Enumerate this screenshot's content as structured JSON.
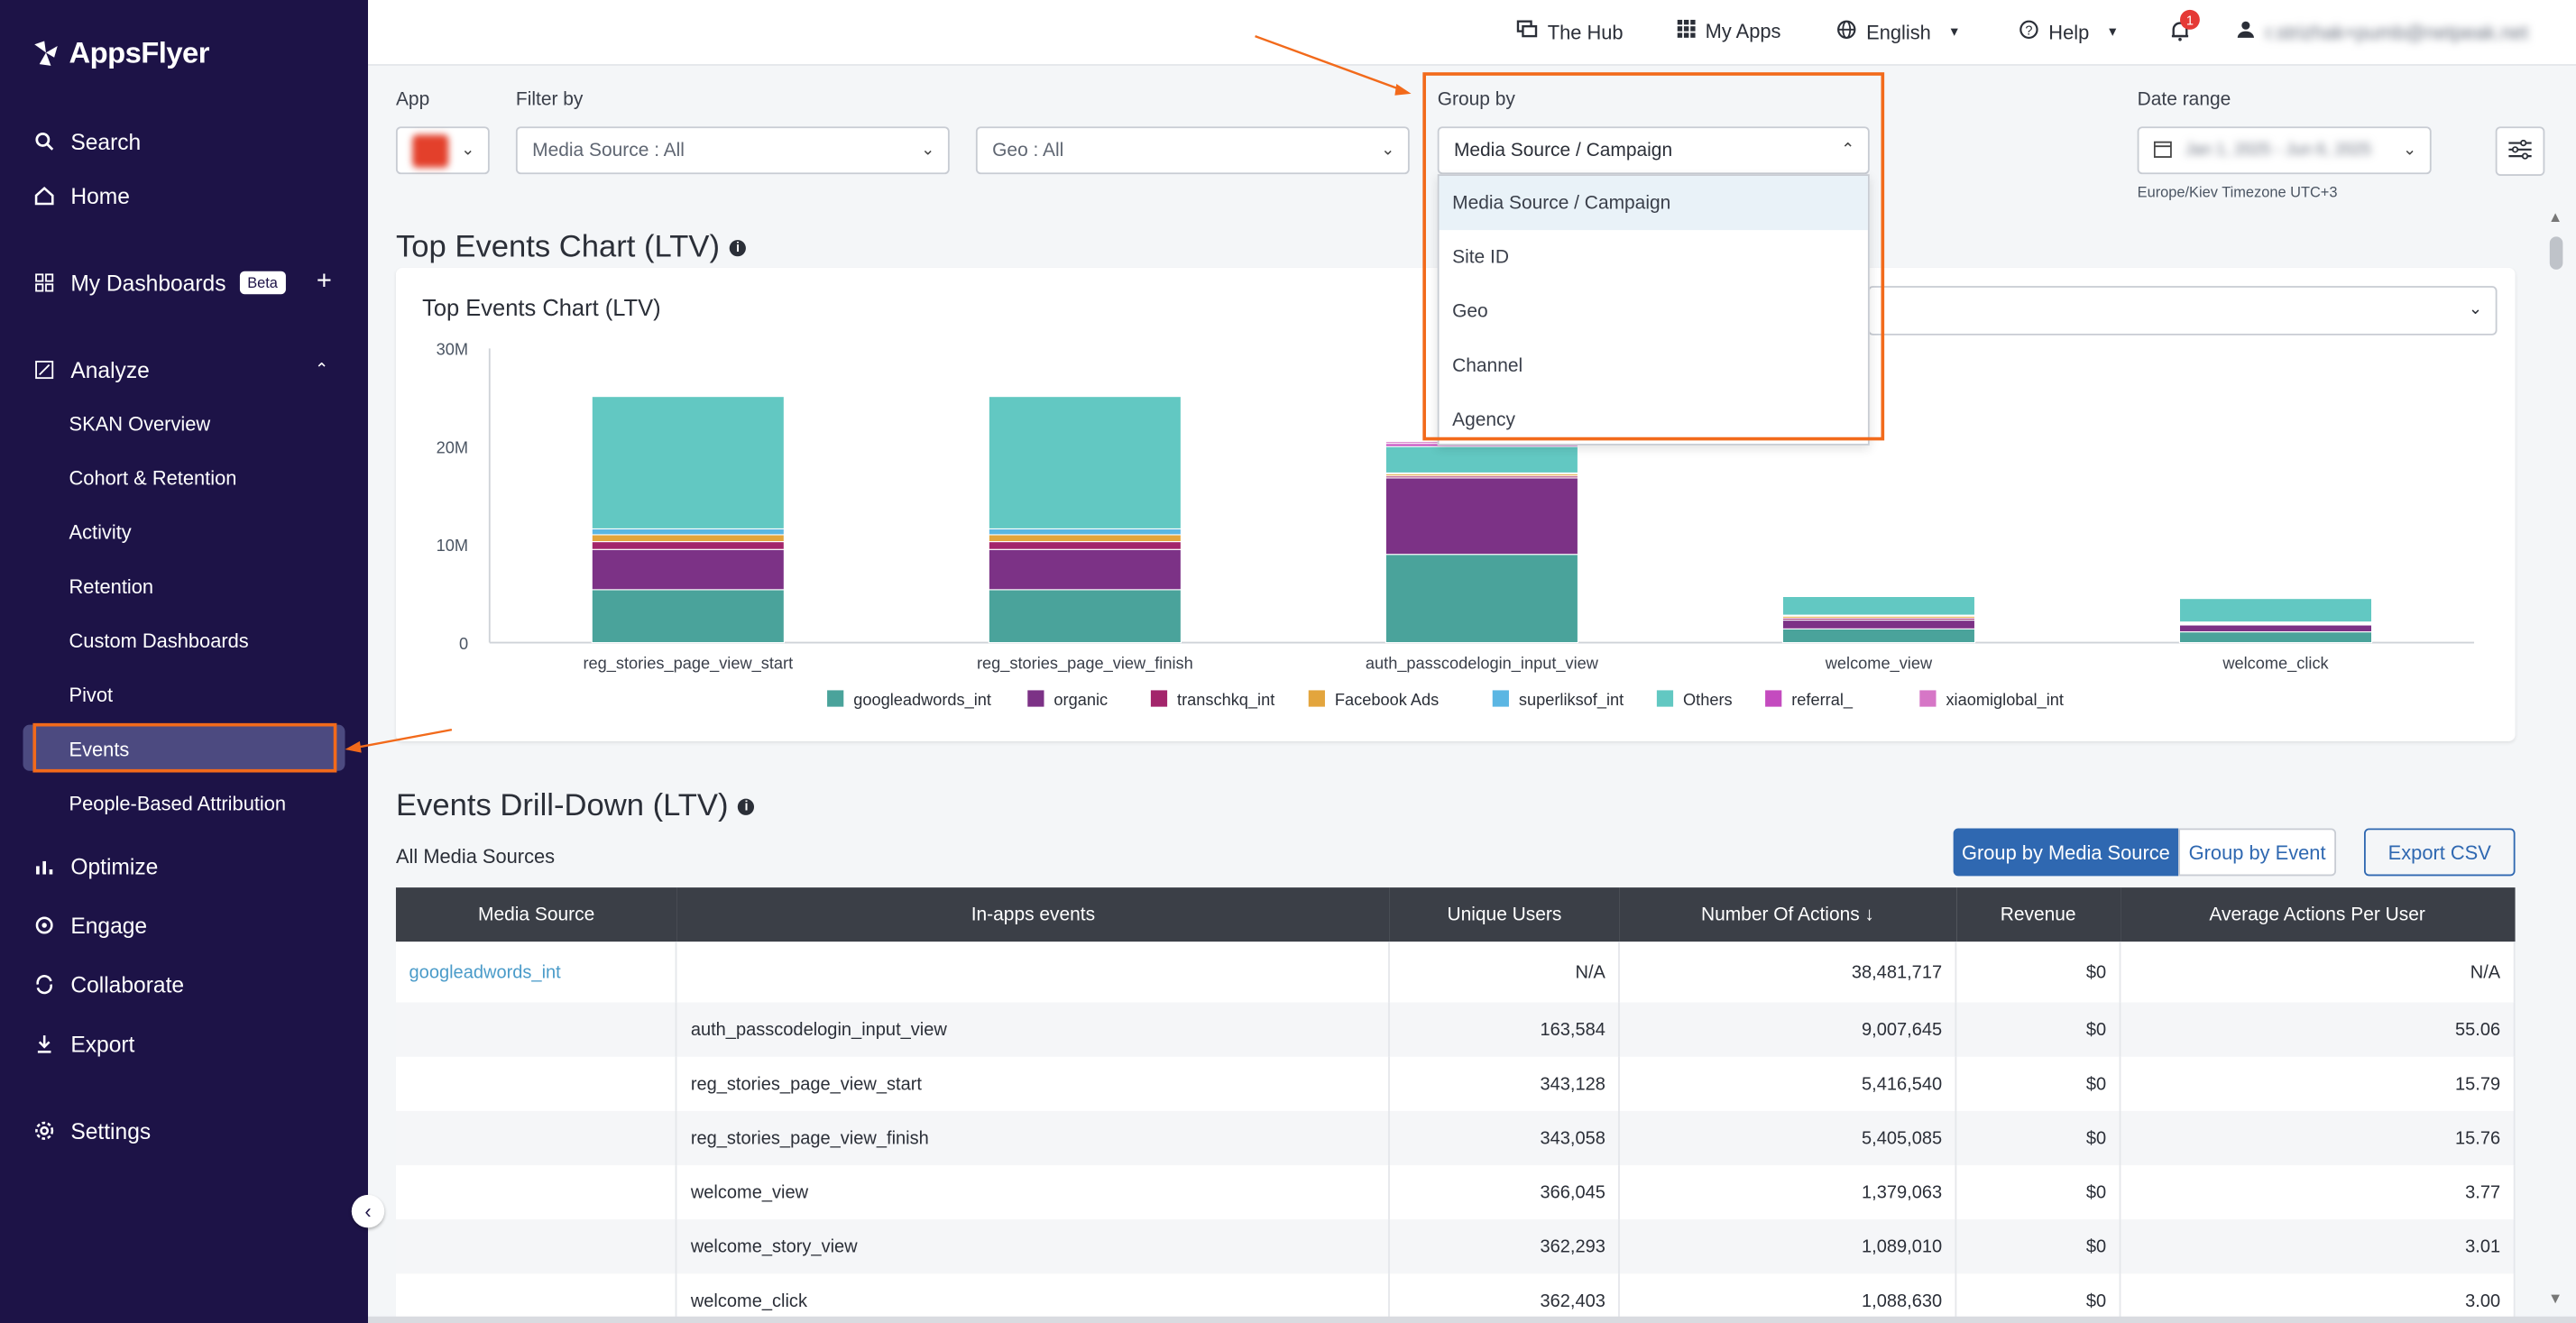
{
  "brand": {
    "name": "AppsFlyer"
  },
  "sidebar": {
    "items": [
      {
        "label": "Search",
        "icon": "search-icon"
      },
      {
        "label": "Home",
        "icon": "home-icon"
      },
      {
        "label": "My Dashboards",
        "icon": "dashboard-icon",
        "badge": "Beta"
      },
      {
        "label": "Analyze",
        "icon": "analyze-icon"
      },
      {
        "label": "Optimize",
        "icon": "optimize-icon"
      },
      {
        "label": "Engage",
        "icon": "engage-icon"
      },
      {
        "label": "Collaborate",
        "icon": "collaborate-icon"
      },
      {
        "label": "Export",
        "icon": "export-icon"
      },
      {
        "label": "Settings",
        "icon": "gear-icon"
      }
    ],
    "analyze_sub": [
      "SKAN Overview",
      "Cohort & Retention",
      "Activity",
      "Retention",
      "Custom Dashboards",
      "Pivot",
      "Events",
      "People-Based Attribution"
    ],
    "selected": "Events"
  },
  "topbar": {
    "hub": "The Hub",
    "apps": "My Apps",
    "language": "English",
    "help": "Help",
    "notifications": "1",
    "user_email": "r.strizhak+pumb@netpeak.net"
  },
  "filters": {
    "app_label": "App",
    "filter_label": "Filter by",
    "media_source": "Media Source : All",
    "geo": "Geo : All",
    "group_label": "Group by",
    "group_value": "Media Source / Campaign",
    "date_label": "Date range",
    "date_value": "Jan 1, 2025 - Jun 6, 2025",
    "timezone": "Europe/Kiev Timezone UTC+3"
  },
  "group_dropdown": {
    "options": [
      "Media Source / Campaign",
      "Site ID",
      "Geo",
      "Channel",
      "Agency"
    ],
    "selected": "Media Source / Campaign"
  },
  "top_events": {
    "section_title": "Top Events Chart (LTV)",
    "card_title": "Top Events Chart (LTV)"
  },
  "chart_data": {
    "type": "bar",
    "stacked": true,
    "title": "Top Events Chart (LTV)",
    "categories": [
      "reg_stories_page_view_start",
      "reg_stories_page_view_finish",
      "auth_passcodelogin_input_view",
      "welcome_view",
      "welcome_click"
    ],
    "ylim": [
      0,
      30000000
    ],
    "yticks": [
      "0",
      "10M",
      "20M",
      "30M"
    ],
    "legend_position": "bottom",
    "series": [
      {
        "name": "googleadwords_int",
        "color": "#4aa39b",
        "values": [
          5400000,
          5400000,
          9000000,
          1400000,
          1100000
        ]
      },
      {
        "name": "organic",
        "color": "#7c3286",
        "values": [
          4100000,
          4100000,
          7800000,
          900000,
          700000
        ]
      },
      {
        "name": "transchkq_int",
        "color": "#a3256b",
        "values": [
          800000,
          800000,
          200000,
          200000,
          100000
        ]
      },
      {
        "name": "Facebook Ads",
        "color": "#e3a53d",
        "values": [
          700000,
          700000,
          200000,
          200000,
          100000
        ]
      },
      {
        "name": "superliksof_int",
        "color": "#5bb6e3",
        "values": [
          600000,
          600000,
          100000,
          100000,
          100000
        ]
      },
      {
        "name": "Others",
        "color": "#62c8c2",
        "values": [
          13500000,
          13500000,
          2700000,
          1900000,
          2400000
        ]
      },
      {
        "name": "referral_",
        "color": "#c44bbf",
        "values": [
          0,
          0,
          300000,
          0,
          0
        ]
      },
      {
        "name": "xiaomiglobal_int",
        "color": "#d676c6",
        "values": [
          0,
          0,
          200000,
          0,
          0
        ]
      }
    ]
  },
  "drilldown": {
    "title": "Events Drill-Down (LTV)",
    "subtitle": "All Media Sources",
    "btn_group_media": "Group by Media Source",
    "btn_group_event": "Group by Event",
    "btn_export": "Export CSV",
    "headers": [
      "Media Source",
      "In-apps events",
      "Unique Users",
      "Number Of Actions ↓",
      "Revenue",
      "Average Actions Per User"
    ],
    "rows": [
      [
        "googleadwords_int",
        "",
        "N/A",
        "38,481,717",
        "$0",
        "N/A"
      ],
      [
        "",
        "auth_passcodelogin_input_view",
        "163,584",
        "9,007,645",
        "$0",
        "55.06"
      ],
      [
        "",
        "reg_stories_page_view_start",
        "343,128",
        "5,416,540",
        "$0",
        "15.79"
      ],
      [
        "",
        "reg_stories_page_view_finish",
        "343,058",
        "5,405,085",
        "$0",
        "15.76"
      ],
      [
        "",
        "welcome_view",
        "366,045",
        "1,379,063",
        "$0",
        "3.77"
      ],
      [
        "",
        "welcome_story_view",
        "362,293",
        "1,089,010",
        "$0",
        "3.01"
      ],
      [
        "",
        "welcome_click",
        "362,403",
        "1,088,630",
        "$0",
        "3.00"
      ]
    ]
  }
}
